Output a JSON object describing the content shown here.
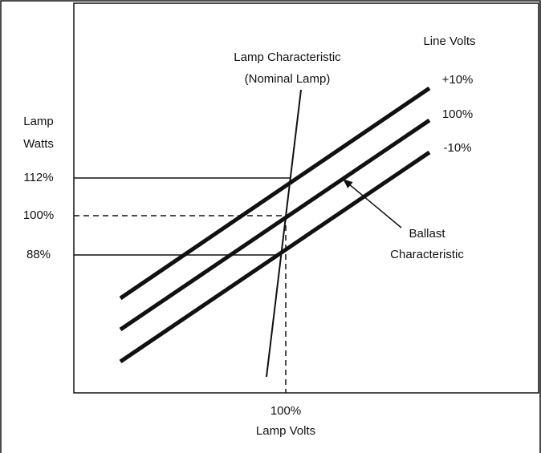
{
  "diagram": {
    "legend_title": "Line Volts",
    "lamp_characteristic": [
      "Lamp Characteristic",
      "(Nominal Lamp)"
    ],
    "curve_labels": [
      "+10%",
      "100%",
      "-10%"
    ],
    "y_axis_label": [
      "Lamp",
      "Watts"
    ],
    "y_levels": [
      "112%",
      "100%",
      "88%"
    ],
    "ballast_label": [
      "Ballast",
      "Characteristic"
    ],
    "x_level": "100%",
    "x_axis_label": "Lamp Volts"
  }
}
